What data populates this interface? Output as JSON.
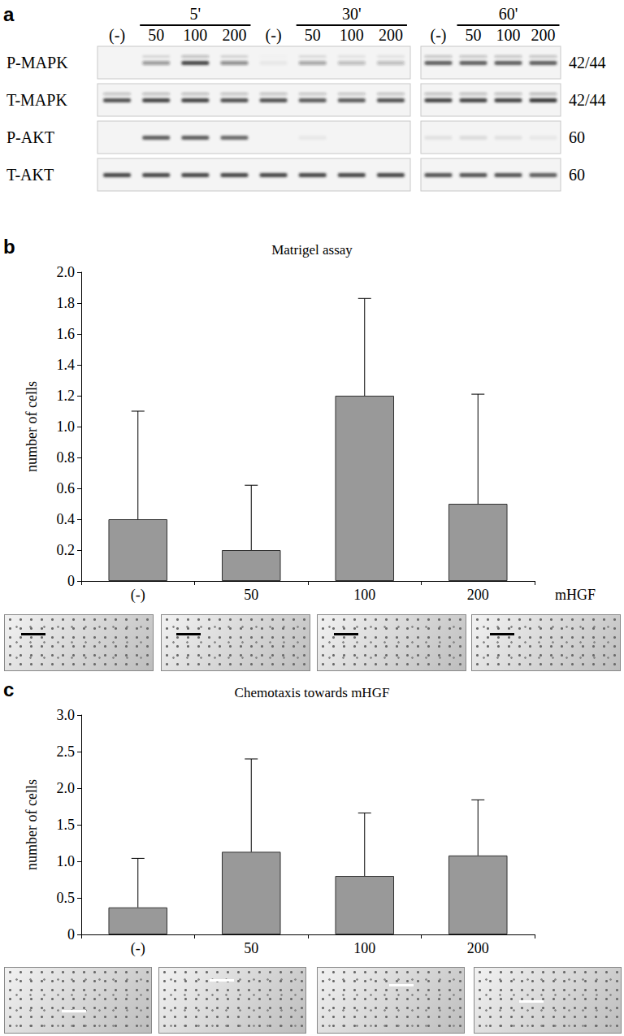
{
  "panel_labels": [
    "a",
    "b",
    "c"
  ],
  "blot": {
    "groups": [
      {
        "time": "5'",
        "lanes": [
          "(-)",
          "50",
          "100",
          "200"
        ]
      },
      {
        "time": "30'",
        "lanes": [
          "(-)",
          "50",
          "100",
          "200"
        ]
      },
      {
        "time": "60'",
        "lanes": [
          "(-)",
          "50",
          "100",
          "200"
        ]
      }
    ],
    "rows": [
      {
        "label": "P-MAPK",
        "size": "42/44",
        "intensity": [
          0.0,
          0.4,
          0.8,
          0.45,
          0.05,
          0.35,
          0.25,
          0.25,
          0.7,
          0.7,
          0.7,
          0.7
        ]
      },
      {
        "label": "T-MAPK",
        "size": "42/44",
        "intensity": [
          0.75,
          0.8,
          0.8,
          0.75,
          0.75,
          0.7,
          0.7,
          0.75,
          0.8,
          0.8,
          0.8,
          0.85
        ]
      },
      {
        "label": "P-AKT",
        "size": "60",
        "intensity": [
          0.0,
          0.7,
          0.7,
          0.65,
          0.0,
          0.05,
          0.0,
          0.0,
          0.08,
          0.1,
          0.08,
          0.05
        ]
      },
      {
        "label": "T-AKT",
        "size": "60",
        "intensity": [
          0.8,
          0.8,
          0.8,
          0.8,
          0.8,
          0.8,
          0.8,
          0.8,
          0.75,
          0.75,
          0.75,
          0.7
        ]
      }
    ]
  },
  "chart_data": [
    {
      "type": "bar",
      "title": "Matrigel assay",
      "ylabel": "number of cells",
      "xlabel": "mHGF",
      "categories": [
        "(-)",
        "50",
        "100",
        "200"
      ],
      "values": [
        0.4,
        0.2,
        1.2,
        0.5
      ],
      "errors": [
        0.7,
        0.42,
        0.63,
        0.71
      ],
      "color": "#999999",
      "ylim": [
        0,
        2
      ],
      "yticks": [
        0,
        0.2,
        0.4,
        0.6,
        0.8,
        {
          "value": 1,
          "label": "1.0"
        },
        1.2,
        1.4,
        1.6,
        1.8,
        {
          "value": 2,
          "label": "2.0"
        }
      ],
      "grid": false
    },
    {
      "type": "bar",
      "title": "Chemotaxis towards mHGF",
      "ylabel": "number of cells",
      "categories": [
        "(-)",
        "50",
        "100",
        "200"
      ],
      "values": [
        0.37,
        1.13,
        0.8,
        1.08
      ],
      "errors": [
        0.67,
        1.27,
        0.86,
        0.76
      ],
      "color": "#999999",
      "ylim": [
        0,
        3
      ],
      "yticks": [
        0,
        0.5,
        {
          "value": 1,
          "label": "1.0"
        },
        1.5,
        {
          "value": 2,
          "label": "2.0"
        },
        2.5,
        {
          "value": 3,
          "label": "3.0"
        }
      ],
      "grid": false
    }
  ]
}
